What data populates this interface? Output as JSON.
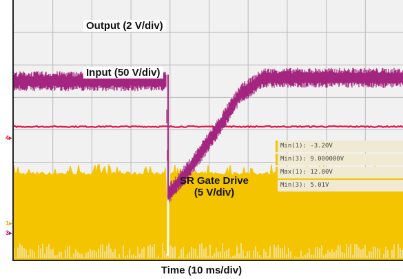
{
  "chart_data": {
    "type": "line",
    "title": "",
    "xlabel": "Time (10 ms/div)",
    "ylabel": "",
    "x_divisions": 10,
    "y_divisions": 8,
    "grid": true,
    "series": [
      {
        "name": "Output (2 V/div)",
        "color": "#a4257f",
        "x": [
          0,
          3.9,
          3.95,
          4.5,
          5.2,
          5.8,
          6.4,
          10
        ],
        "y": [
          5.5,
          5.5,
          2.0,
          2.8,
          4.0,
          5.1,
          5.6,
          5.6
        ]
      },
      {
        "name": "Input (50 V/div)",
        "color": "#e2154a",
        "x": [
          0,
          10
        ],
        "y": [
          4.1,
          4.1
        ]
      },
      {
        "name": "SR Gate Drive (5 V/div)",
        "color": "#f5c400",
        "x": [
          0,
          3.9,
          3.95,
          4.0,
          10
        ],
        "y": [
          2.6,
          2.6,
          -0.2,
          2.6,
          2.6
        ]
      }
    ],
    "channel_markers": [
      {
        "label": "4",
        "color": "#d42030"
      },
      {
        "label": "1",
        "color": "#f5c400"
      },
      {
        "label": "3",
        "color": "#a4257f"
      }
    ]
  },
  "measurements": [
    "Min(1): -3.20V",
    "Min(3): 9.000000V",
    "Max(1): 12.80V",
    "Min(3): 5.01V"
  ]
}
